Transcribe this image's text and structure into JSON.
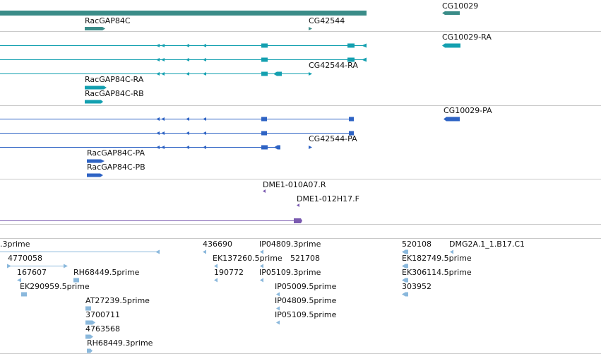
{
  "colors": {
    "gene": "#3a8c88",
    "transcript": "#14a0b0",
    "protein": "#2e63c4",
    "marker": "#7a5ab0",
    "est": "#8ab8dc",
    "divider": "#c9c9c9"
  },
  "tracks": {
    "genes": {
      "labels": [
        "RacGAP84C",
        "CG42544",
        "CG10029"
      ]
    },
    "transcripts": {
      "labels": [
        "CG10029-RA",
        "CG42544-RA",
        "RacGAP84C-RA",
        "RacGAP84C-RB"
      ]
    },
    "proteins": {
      "labels": [
        "CG10029-PA",
        "CG42544-PA",
        "RacGAP84C-PA",
        "RacGAP84C-PB"
      ]
    },
    "markers": {
      "labels": [
        "DME1-010A07.R",
        "DME1-012H17.F"
      ]
    },
    "ests": {
      "labels": [
        ".3prime",
        "4770058",
        "167607",
        "RH68449.5prime",
        "EK290959.5prime",
        "AT27239.5prime",
        "3700711",
        "4763568",
        "RH68449.3prime",
        "436690",
        "EK137260.5prime",
        "190772",
        "IP04809.3prime",
        "521708",
        "IP05109.3prime",
        "IP05009.5prime",
        "IP04809.5prime",
        "IP05109.5prime",
        "520108",
        "DMG2A.1_1.B17.C1",
        "EK182749.5prime",
        "EK306114.5prime",
        "303952"
      ]
    }
  }
}
